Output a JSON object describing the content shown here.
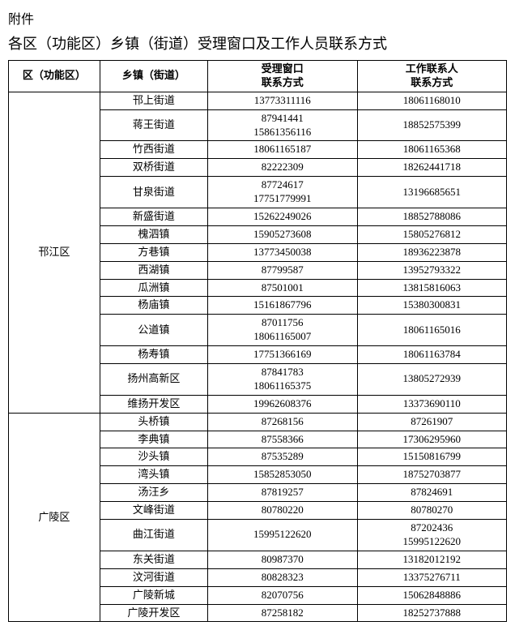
{
  "header1": "附件",
  "header2": "各区（功能区）乡镇（街道）受理窗口及工作人员联系方式",
  "columns": {
    "district": "区（功能区）",
    "town": "乡镇（街道）",
    "windowContact": "受理窗口\n联系方式",
    "staffContact": "工作联系人\n联系方式"
  },
  "districts": [
    {
      "name": "邗江区",
      "rows": [
        {
          "town": "邗上街道",
          "window": "13773311116",
          "staff": "18061168010"
        },
        {
          "town": "蒋王街道",
          "window": "87941441\n15861356116",
          "staff": "18852575399"
        },
        {
          "town": "竹西街道",
          "window": "18061165187",
          "staff": "18061165368"
        },
        {
          "town": "双桥街道",
          "window": "82222309",
          "staff": "18262441718"
        },
        {
          "town": "甘泉街道",
          "window": "87724617\n17751779991",
          "staff": "13196685651"
        },
        {
          "town": "新盛街道",
          "window": "15262249026",
          "staff": "18852788086"
        },
        {
          "town": "槐泗镇",
          "window": "15905273608",
          "staff": "15805276812"
        },
        {
          "town": "方巷镇",
          "window": "13773450038",
          "staff": "18936223878"
        },
        {
          "town": "西湖镇",
          "window": "87799587",
          "staff": "13952793322"
        },
        {
          "town": "瓜洲镇",
          "window": "87501001",
          "staff": "13815816063"
        },
        {
          "town": "杨庙镇",
          "window": "15161867796",
          "staff": "15380300831"
        },
        {
          "town": "公道镇",
          "window": "87011756\n18061165007",
          "staff": "18061165016"
        },
        {
          "town": "杨寿镇",
          "window": "17751366169",
          "staff": "18061163784"
        },
        {
          "town": "扬州高新区",
          "window": "87841783\n18061165375",
          "staff": "13805272939"
        },
        {
          "town": "维扬开发区",
          "window": "19962608376",
          "staff": "13373690110"
        }
      ]
    },
    {
      "name": "广陵区",
      "rows": [
        {
          "town": "头桥镇",
          "window": "87268156",
          "staff": "87261907"
        },
        {
          "town": "李典镇",
          "window": "87558366",
          "staff": "17306295960"
        },
        {
          "town": "沙头镇",
          "window": "87535289",
          "staff": "15150816799"
        },
        {
          "town": "湾头镇",
          "window": "15852853050",
          "staff": "18752703877"
        },
        {
          "town": "汤汪乡",
          "window": "87819257",
          "staff": "87824691"
        },
        {
          "town": "文峰街道",
          "window": "80780220",
          "staff": "80780270"
        },
        {
          "town": "曲江街道",
          "window": "15995122620",
          "staff": "87202436\n15995122620"
        },
        {
          "town": "东关街道",
          "window": "80987370",
          "staff": "13182012192"
        },
        {
          "town": "汶河街道",
          "window": "80828323",
          "staff": "13375276711"
        },
        {
          "town": "广陵新城",
          "window": "82070756",
          "staff": "15062848886"
        },
        {
          "town": "广陵开发区",
          "window": "87258182",
          "staff": "18252737888"
        }
      ]
    }
  ]
}
